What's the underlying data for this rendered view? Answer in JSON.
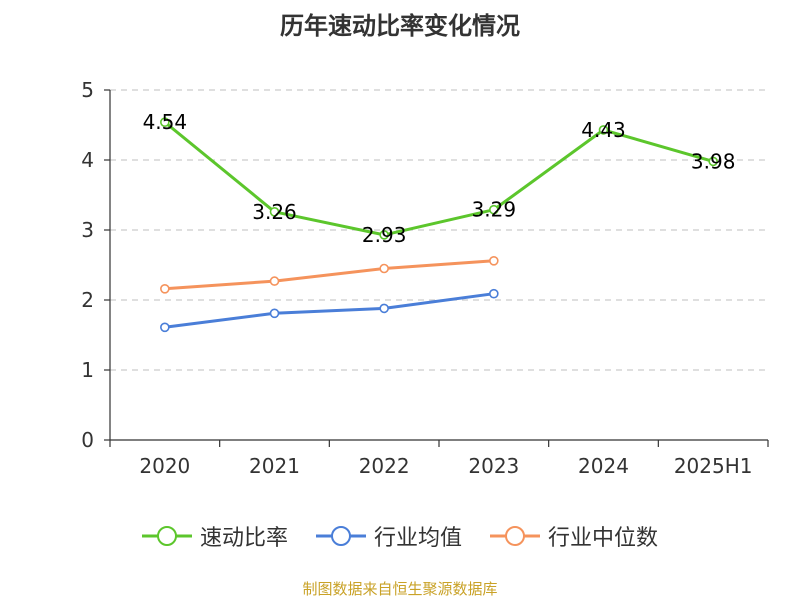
{
  "chart_data": {
    "type": "line",
    "title": "历年速动比率变化情况",
    "categories": [
      "2020",
      "2021",
      "2022",
      "2023",
      "2024",
      "2025H1"
    ],
    "ylim": [
      0,
      5
    ],
    "yticks": [
      "0",
      "1",
      "2",
      "3",
      "4",
      "5"
    ],
    "grid": true,
    "legend_position": "bottom",
    "series": [
      {
        "name": "速动比率",
        "color": "#5cc62c",
        "values": [
          4.54,
          3.26,
          2.93,
          3.29,
          4.43,
          3.98
        ],
        "labels": [
          "4.54",
          "3.26",
          "2.93",
          "3.29",
          "4.43",
          "3.98"
        ]
      },
      {
        "name": "行业均值",
        "color": "#4a7ed8",
        "values": [
          1.61,
          1.81,
          1.88,
          2.09,
          null,
          null
        ]
      },
      {
        "name": "行业中位数",
        "color": "#f5935c",
        "values": [
          2.16,
          2.27,
          2.45,
          2.56,
          null,
          null
        ]
      }
    ]
  },
  "source": "制图数据来自恒生聚源数据库"
}
